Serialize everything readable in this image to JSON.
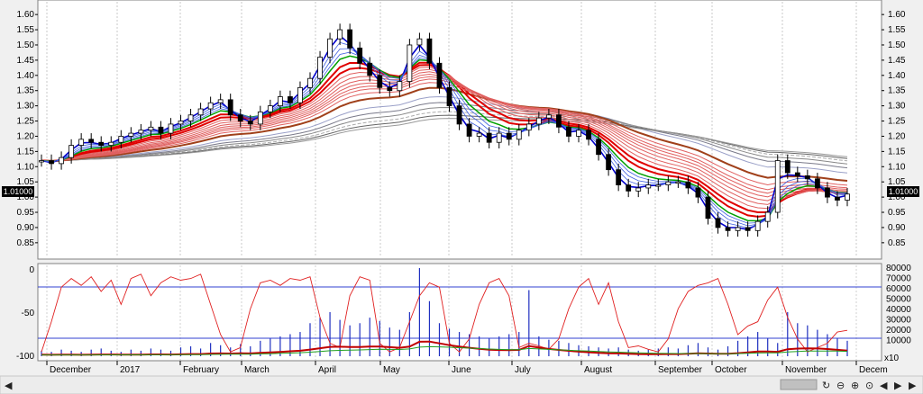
{
  "chart_data": [
    {
      "type": "candlestick",
      "title": "",
      "ylim": [
        0.82,
        1.63
      ],
      "y_ticks": [
        "1.60",
        "1.55",
        "1.50",
        "1.45",
        "1.40",
        "1.35",
        "1.30",
        "1.25",
        "1.20",
        "1.15",
        "1.10",
        "1.05",
        "1.00",
        "0.95",
        "0.90",
        "0.85"
      ],
      "last_price_label": "1.01000",
      "last_price": 1.01,
      "grid": "vertical dotted at months",
      "close_series": [
        1.12,
        1.11,
        1.13,
        1.17,
        1.19,
        1.18,
        1.17,
        1.18,
        1.2,
        1.21,
        1.22,
        1.23,
        1.21,
        1.24,
        1.25,
        1.27,
        1.29,
        1.31,
        1.32,
        1.27,
        1.25,
        1.24,
        1.28,
        1.3,
        1.33,
        1.31,
        1.36,
        1.39,
        1.46,
        1.52,
        1.55,
        1.49,
        1.44,
        1.4,
        1.36,
        1.35,
        1.38,
        1.5,
        1.52,
        1.44,
        1.36,
        1.3,
        1.24,
        1.2,
        1.21,
        1.18,
        1.21,
        1.19,
        1.22,
        1.24,
        1.26,
        1.27,
        1.23,
        1.2,
        1.22,
        1.19,
        1.14,
        1.09,
        1.04,
        1.02,
        1.03,
        1.04,
        1.04,
        1.05,
        1.05,
        1.03,
        1.0,
        0.93,
        0.9,
        0.89,
        0.9,
        0.89,
        0.92,
        0.95,
        1.12,
        1.08,
        1.07,
        1.06,
        1.03,
        1.0,
        0.99,
        1.01
      ]
    },
    {
      "type": "line",
      "ylim": [
        -100,
        0
      ],
      "y_ticks": [
        "0",
        "-50",
        "-100"
      ],
      "y2_ticks": [
        "80000",
        "70000",
        "60000",
        "50000",
        "40000",
        "30000",
        "20000",
        "10000"
      ],
      "y2_unit_label": "x10",
      "x_labels": [
        "December",
        "2017",
        "February",
        "March",
        "April",
        "May",
        "June",
        "July",
        "August",
        "September",
        "October",
        "November",
        "Decem"
      ],
      "oscillator_series": [
        -95,
        -60,
        -20,
        -10,
        -18,
        -8,
        -25,
        -12,
        -40,
        -10,
        -5,
        -30,
        -15,
        -8,
        -12,
        -10,
        -5,
        -40,
        -75,
        -95,
        -90,
        -45,
        -15,
        -12,
        -18,
        -10,
        -12,
        -8,
        -55,
        -85,
        -90,
        -30,
        -8,
        -12,
        -85,
        -95,
        -90,
        -60,
        -30,
        -15,
        -20,
        -85,
        -95,
        -80,
        -40,
        -15,
        -10,
        -30,
        -90,
        -85,
        -88,
        -92,
        -80,
        -45,
        -20,
        -10,
        -40,
        -15,
        -60,
        -90,
        -88,
        -92,
        -95,
        -80,
        -45,
        -25,
        -18,
        -15,
        -10,
        -40,
        -75,
        -65,
        -60,
        -35,
        -20,
        -55,
        -80,
        -95,
        -90,
        -85,
        -72,
        -70
      ],
      "volume_series": [
        5,
        4,
        6,
        5,
        4,
        6,
        7,
        5,
        4,
        6,
        5,
        7,
        6,
        5,
        8,
        9,
        7,
        12,
        10,
        8,
        11,
        9,
        14,
        16,
        18,
        20,
        22,
        30,
        35,
        40,
        33,
        28,
        30,
        35,
        32,
        26,
        24,
        40,
        80,
        50,
        30,
        25,
        22,
        20,
        18,
        16,
        18,
        20,
        22,
        60,
        18,
        15,
        14,
        12,
        10,
        9,
        8,
        7,
        8,
        6,
        5,
        6,
        7,
        8,
        7,
        10,
        12,
        8,
        6,
        9,
        14,
        18,
        22,
        16,
        12,
        40,
        30,
        28,
        24,
        20,
        16,
        14
      ]
    }
  ]
}
